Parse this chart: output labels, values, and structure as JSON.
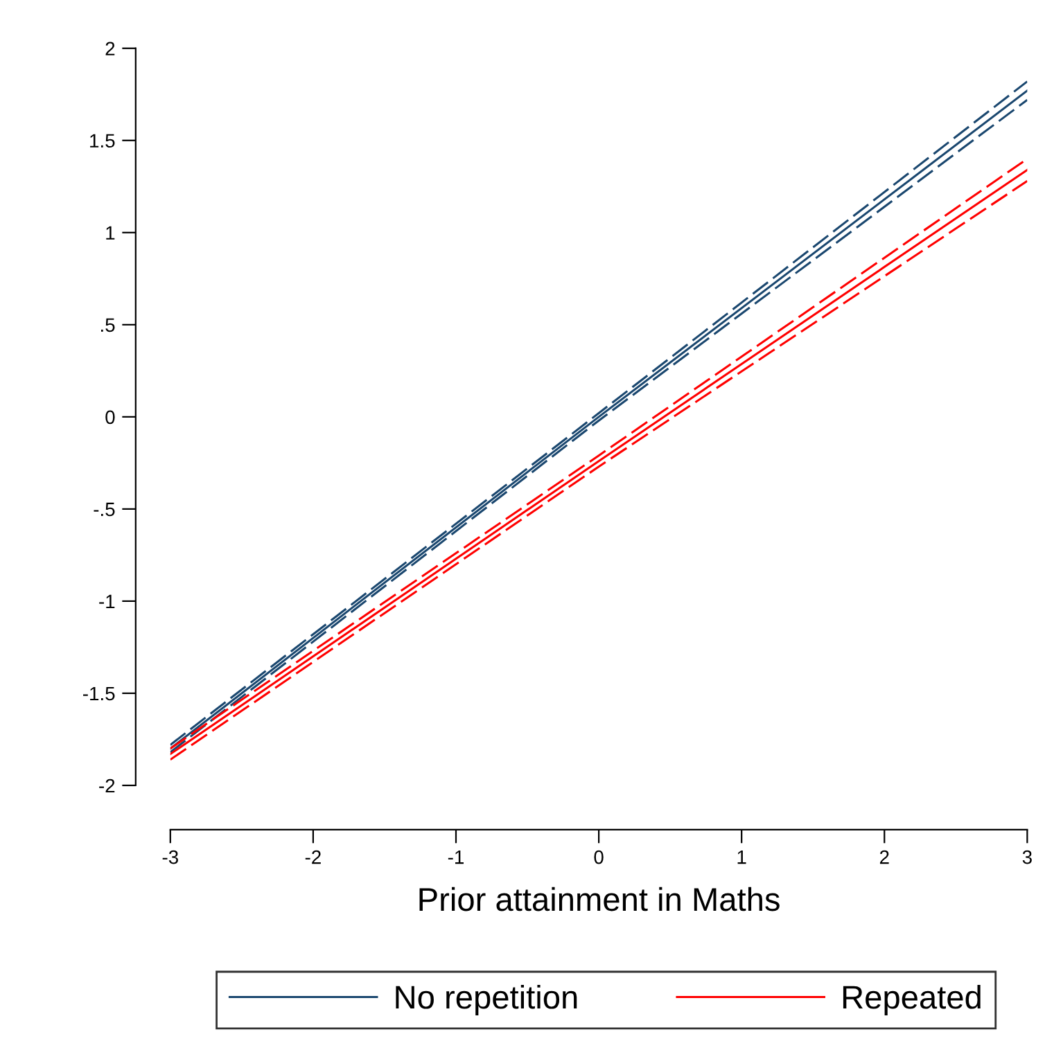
{
  "chart_data": {
    "type": "line",
    "xlabel": "Prior attainment in Maths",
    "xlim": [
      -3,
      3
    ],
    "ylim": [
      -2,
      2
    ],
    "xticks": [
      -3,
      -2,
      -1,
      0,
      1,
      2,
      3
    ],
    "yticks": [
      -2,
      {
        "value": -1.5,
        "label": "-1.5"
      },
      -1,
      {
        "value": -0.5,
        "label": "-.5"
      },
      0,
      {
        "value": 0.5,
        "label": ".5"
      },
      1,
      {
        "value": 1.5,
        "label": "1.5"
      },
      2
    ],
    "grid": false,
    "legend": "bottom",
    "marker": "none",
    "line_style": "solid",
    "series": [
      {
        "name": "No repetition",
        "color": "#1a476f",
        "x": [
          -3,
          0,
          3
        ],
        "values": [
          -1.8,
          0,
          1.77
        ]
      },
      {
        "color": "#1a476f",
        "line_style": "dashed",
        "x": [
          -3,
          0,
          3
        ],
        "values": [
          -1.82,
          -0.02,
          1.72
        ]
      },
      {
        "color": "#1a476f",
        "line_style": "dashed",
        "x": [
          -3,
          0,
          3
        ],
        "values": [
          -1.78,
          0.02,
          1.82
        ]
      },
      {
        "name": "Repeated",
        "color": "#ff0000",
        "x": [
          -3,
          0,
          3
        ],
        "values": [
          -1.83,
          -0.24,
          1.34
        ]
      },
      {
        "color": "#ff0000",
        "line_style": "dashed",
        "x": [
          -3,
          0,
          3
        ],
        "values": [
          -1.86,
          -0.27,
          1.28
        ]
      },
      {
        "color": "#ff0000",
        "line_style": "dashed",
        "x": [
          -3,
          0,
          3
        ],
        "values": [
          -1.8,
          -0.21,
          1.4
        ]
      }
    ]
  }
}
